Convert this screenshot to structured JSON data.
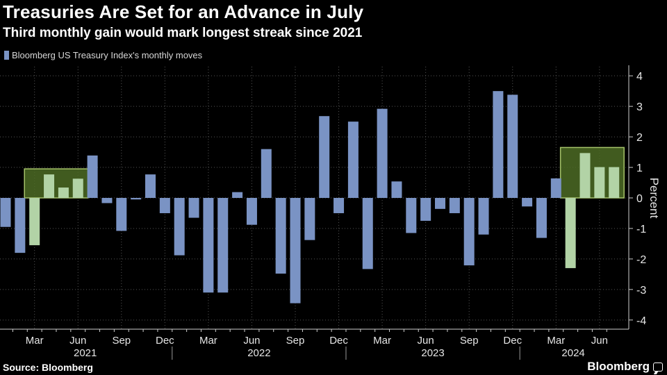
{
  "header": {
    "title": "Treasuries Are Set for an Advance in July",
    "subtitle": "Third monthly gain would mark longest streak since 2021"
  },
  "legend": {
    "label": "Bloomberg US Treasury Index's monthly moves"
  },
  "footer": {
    "source": "Source: Bloomberg",
    "brand": "Bloomberg"
  },
  "colors": {
    "bar": "#7a93c4",
    "highlight_fill": "#4c6b24",
    "highlight_stroke": "#a6c36a",
    "highlighted_bar": "#b2d3a6"
  },
  "chart_data": {
    "type": "bar",
    "ylabel": "Percent",
    "ylim": [
      -4.3,
      4.3
    ],
    "yticks": [
      4,
      3,
      2,
      1,
      0,
      -1,
      -2,
      -3,
      -4
    ],
    "month_labels": [
      "Mar",
      "Jun",
      "Sep",
      "Dec",
      "Mar",
      "Jun",
      "Sep",
      "Dec",
      "Mar",
      "Jun",
      "Sep",
      "Dec",
      "Mar",
      "Jun"
    ],
    "year_labels": [
      "2021",
      "2022",
      "2023",
      "2024"
    ],
    "series": [
      {
        "x": [
          "2021-01",
          "2021-02",
          "2021-03",
          "2021-04",
          "2021-05",
          "2021-06",
          "2021-07",
          "2021-08",
          "2021-09",
          "2021-10",
          "2021-11",
          "2021-12",
          "2022-01",
          "2022-02",
          "2022-03",
          "2022-04",
          "2022-05",
          "2022-06",
          "2022-07",
          "2022-08",
          "2022-09",
          "2022-10",
          "2022-11",
          "2022-12",
          "2023-01",
          "2023-02",
          "2023-03",
          "2023-04",
          "2023-05",
          "2023-06",
          "2023-07",
          "2023-08",
          "2023-09",
          "2023-10",
          "2023-11",
          "2023-12",
          "2024-01",
          "2024-02",
          "2024-03",
          "2024-04",
          "2024-05",
          "2024-06",
          "2024-07"
        ],
        "values": [
          -0.95,
          -1.8,
          -1.55,
          0.77,
          0.34,
          0.63,
          1.39,
          -0.17,
          -1.08,
          -0.05,
          0.77,
          -0.5,
          -1.88,
          -0.65,
          -3.1,
          -3.1,
          0.19,
          -0.88,
          1.6,
          -2.48,
          -3.45,
          -1.38,
          2.68,
          -0.5,
          2.5,
          -2.33,
          2.92,
          0.54,
          -1.15,
          -0.75,
          -0.36,
          -0.5,
          -2.21,
          -1.2,
          3.5,
          3.38,
          -0.28,
          -1.31,
          0.64,
          -2.3,
          1.47,
          1.01,
          1.01
        ]
      }
    ],
    "highlight_ranges": [
      [
        "2021-03",
        "2021-06"
      ],
      [
        "2024-04",
        "2024-07"
      ]
    ]
  }
}
